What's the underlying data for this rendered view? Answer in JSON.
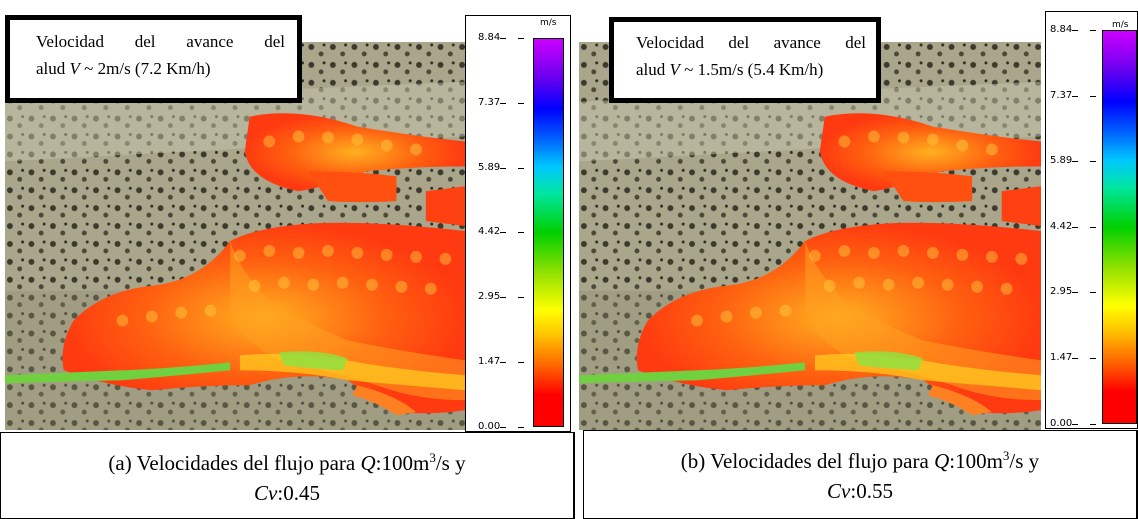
{
  "panels": [
    {
      "callout": {
        "line1": "Velocidad del avance del",
        "prefix": "alud ",
        "var": "V",
        "rest": " ~ 2m/s (7.2 Km/h)"
      },
      "scale": {
        "unit": "m/s",
        "ticks": [
          "8.84",
          "7.37",
          "5.89",
          "4.42",
          "2.95",
          "1.47",
          "0.00"
        ]
      },
      "caption": {
        "lead": "(a) Velocidades del flujo para ",
        "q_var": "Q",
        "q_val": ":100m",
        "sup": "3",
        "q_tail": "/s y",
        "cv_var": "Cv",
        "cv_val": ":0.45"
      }
    },
    {
      "callout": {
        "line1": "Velocidad del avance del",
        "prefix": "alud ",
        "var": "V",
        "rest": " ~ 1.5m/s (5.4 Km/h)"
      },
      "scale": {
        "unit": "m/s",
        "ticks": [
          "8.84",
          "7.37",
          "5.89",
          "4.42",
          "2.95",
          "1.47",
          "0.00"
        ]
      },
      "caption": {
        "lead": "(b) Velocidades del flujo para ",
        "q_var": "Q",
        "q_val": ":100m",
        "sup": "3",
        "q_tail": "/s y",
        "cv_var": "Cv",
        "cv_val": ":0.55"
      }
    }
  ],
  "colors": {
    "terrain": "#a9a68c",
    "vegetation": "#3b3a2c",
    "flow_red": "#ff3a10",
    "flow_orange": "#ff7a10",
    "flow_yellow": "#ffd020",
    "flow_green": "#90e040"
  }
}
